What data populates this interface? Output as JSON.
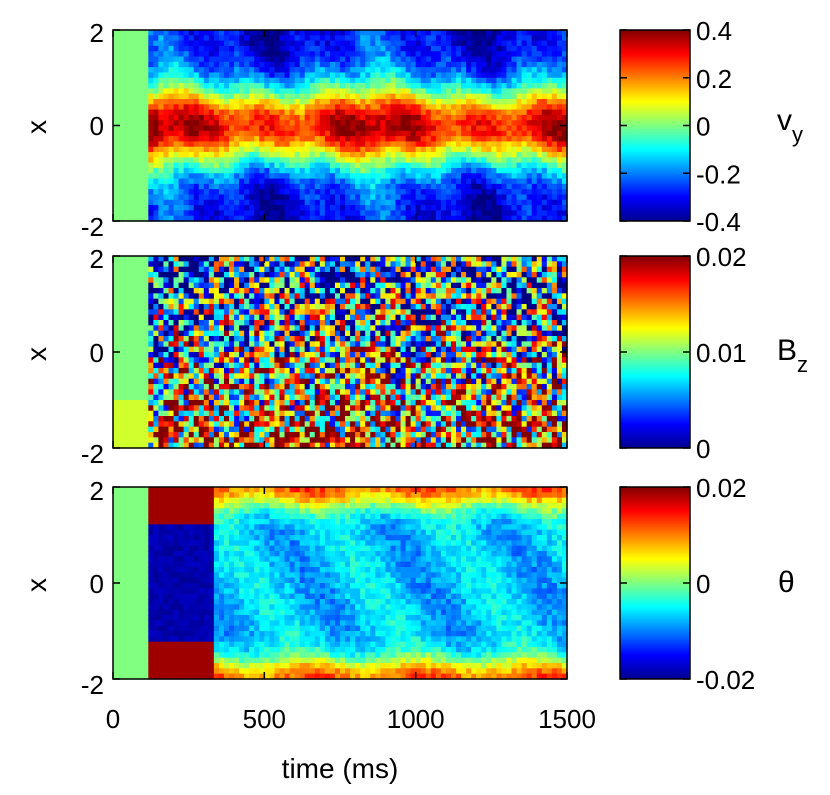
{
  "chart_data": {
    "type": "heatmap",
    "layout": "three vertically stacked panels with colorbars",
    "colormap": "jet",
    "xlabel": "time (ms)",
    "xlim": [
      0,
      1500
    ],
    "xticks": [
      "0",
      "500",
      "1000",
      "1500"
    ],
    "panels": [
      {
        "id": "vy",
        "ylabel": "x",
        "ylim": [
          -2,
          2
        ],
        "yticks": [
          "-2",
          "0",
          "2"
        ],
        "colorbar_label": "v",
        "colorbar_subscript": "y",
        "clim": [
          -0.4,
          0.4
        ],
        "colorbar_ticks": [
          "-0.4",
          "-0.2",
          "0",
          "0.2",
          "0.4"
        ],
        "colorbar_tick_values": [
          -0.4,
          -0.2,
          0,
          0.2,
          0.4
        ]
      },
      {
        "id": "bz",
        "ylabel": "x",
        "ylim": [
          -2,
          2
        ],
        "yticks": [
          "-2",
          "0",
          "2"
        ],
        "colorbar_label": "B",
        "colorbar_subscript": "z",
        "clim": [
          0,
          0.02
        ],
        "colorbar_ticks": [
          "0",
          "0.01",
          "0.02"
        ],
        "colorbar_tick_values": [
          0,
          0.01,
          0.02
        ]
      },
      {
        "id": "theta",
        "ylabel": "x",
        "ylim": [
          -2,
          2
        ],
        "yticks": [
          "-2",
          "0",
          "2"
        ],
        "colorbar_label": "θ",
        "colorbar_subscript": "",
        "clim": [
          -0.02,
          0.02
        ],
        "colorbar_ticks": [
          "-0.02",
          "0",
          "0.02"
        ],
        "colorbar_tick_values": [
          -0.02,
          0,
          0.02
        ]
      }
    ],
    "onset_time_ms": 110
  }
}
